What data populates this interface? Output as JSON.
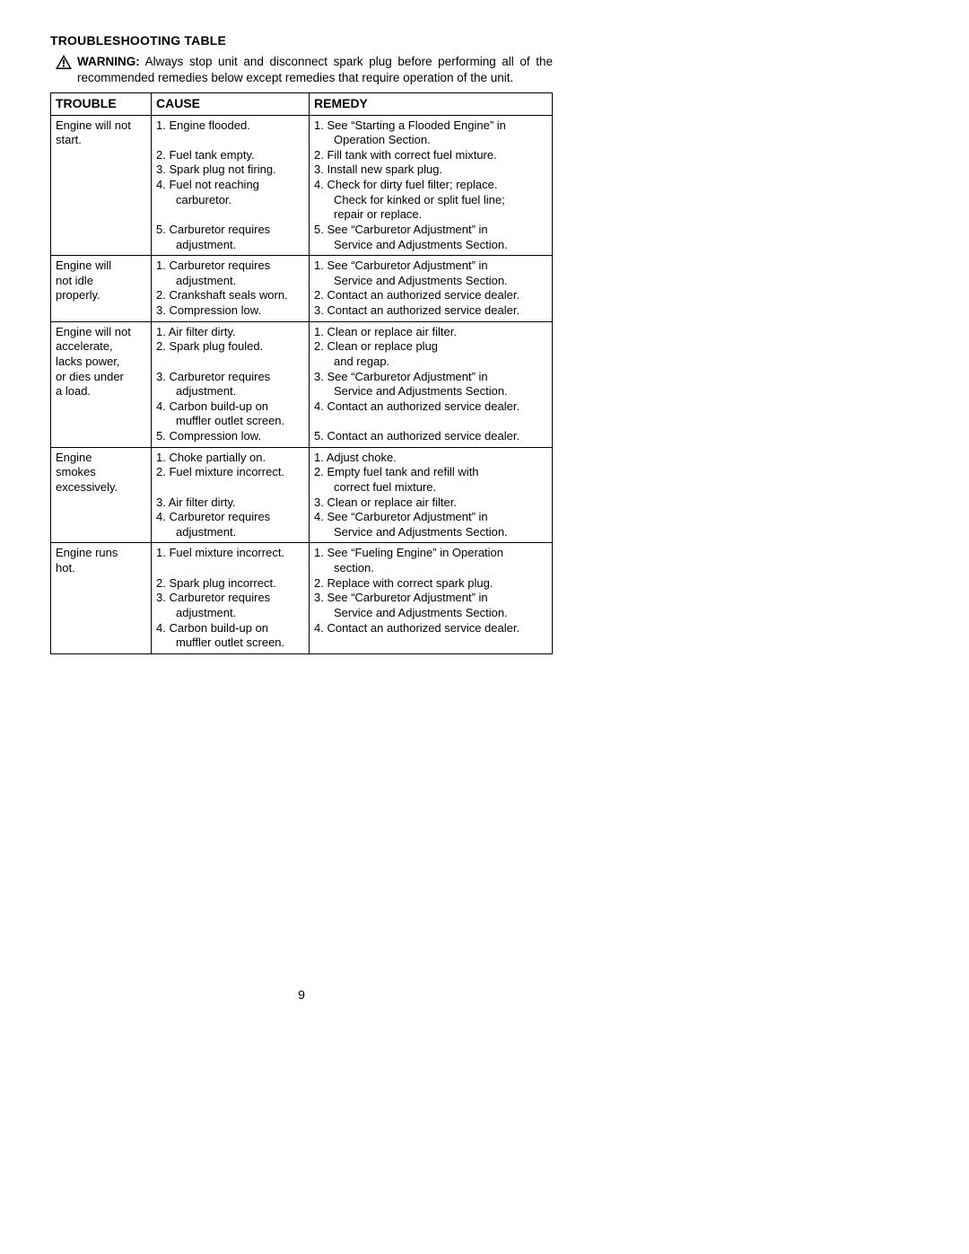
{
  "title": "TROUBLESHOOTING TABLE",
  "warning_label": "WARNING:",
  "warning_text": "Always stop unit and disconnect spark plug before performing all of the recommended remedies below except remedies that require operation of the unit.",
  "headers": {
    "trouble": "TROUBLE",
    "cause": "CAUSE",
    "remedy": "REMEDY"
  },
  "rows": [
    {
      "trouble": [
        "Engine will not",
        "start."
      ],
      "cause": [
        {
          "t": "1. Engine flooded."
        },
        {
          "t": ""
        },
        {
          "t": "2. Fuel tank empty."
        },
        {
          "t": "3. Spark plug not firing."
        },
        {
          "t": "4. Fuel not reaching"
        },
        {
          "t": "carburetor.",
          "cont": true
        },
        {
          "t": ""
        },
        {
          "t": "5. Carburetor requires"
        },
        {
          "t": "adjustment.",
          "cont": true
        }
      ],
      "remedy": [
        {
          "t": "1. See “Starting a Flooded Engine” in"
        },
        {
          "t": "Operation Section.",
          "cont": true
        },
        {
          "t": "2. Fill tank with correct fuel mixture."
        },
        {
          "t": "3. Install new spark plug."
        },
        {
          "t": "4. Check for dirty fuel filter; replace."
        },
        {
          "t": "Check for kinked or split fuel line;",
          "cont": true
        },
        {
          "t": "repair or replace.",
          "cont": true
        },
        {
          "t": "5. See “Carburetor Adjustment” in"
        },
        {
          "t": "Service and Adjustments Section.",
          "cont": true
        }
      ]
    },
    {
      "trouble": [
        "Engine will",
        "not idle",
        "properly."
      ],
      "cause": [
        {
          "t": "1. Carburetor requires"
        },
        {
          "t": "adjustment.",
          "cont": true
        },
        {
          "t": "2. Crankshaft seals worn."
        },
        {
          "t": "3. Compression low."
        }
      ],
      "remedy": [
        {
          "t": "1. See “Carburetor Adjustment” in"
        },
        {
          "t": "Service and Adjustments Section.",
          "cont": true
        },
        {
          "t": "2. Contact an authorized service dealer."
        },
        {
          "t": "3. Contact an authorized service dealer."
        }
      ]
    },
    {
      "trouble": [
        "Engine will not",
        "accelerate,",
        "lacks power,",
        "or dies under",
        "a load."
      ],
      "cause": [
        {
          "t": "1.  Air filter dirty."
        },
        {
          "t": "2. Spark plug fouled."
        },
        {
          "t": ""
        },
        {
          "t": "3. Carburetor requires"
        },
        {
          "t": "adjustment.",
          "cont": true
        },
        {
          "t": "4. Carbon build-up on"
        },
        {
          "t": "muffler outlet screen.",
          "cont": true
        },
        {
          "t": "5. Compression low."
        }
      ],
      "remedy": [
        {
          "t": "1. Clean or replace air filter."
        },
        {
          "t": "2. Clean or replace plug"
        },
        {
          "t": "and regap.",
          "cont": true
        },
        {
          "t": "3. See “Carburetor Adjustment” in"
        },
        {
          "t": "Service and Adjustments Section.",
          "cont": true
        },
        {
          "t": "4. Contact an authorized service dealer."
        },
        {
          "t": ""
        },
        {
          "t": "5. Contact an authorized service dealer."
        }
      ]
    },
    {
      "trouble": [
        "Engine",
        "smokes",
        "excessively."
      ],
      "cause": [
        {
          "t": "1. Choke partially on."
        },
        {
          "t": "2. Fuel mixture incorrect."
        },
        {
          "t": ""
        },
        {
          "t": "3.  Air filter dirty."
        },
        {
          "t": "4. Carburetor requires"
        },
        {
          "t": "adjustment.",
          "cont": true
        }
      ],
      "remedy": [
        {
          "t": "1. Adjust choke."
        },
        {
          "t": "2. Empty fuel tank and refill with"
        },
        {
          "t": "correct fuel mixture.",
          "cont": true
        },
        {
          "t": "3. Clean or replace air filter."
        },
        {
          "t": "4. See “Carburetor Adjustment” in"
        },
        {
          "t": "Service and Adjustments Section.",
          "cont": true
        }
      ]
    },
    {
      "trouble": [
        "Engine runs",
        "hot."
      ],
      "cause": [
        {
          "t": "1. Fuel mixture incorrect."
        },
        {
          "t": ""
        },
        {
          "t": "2. Spark plug incorrect."
        },
        {
          "t": "3. Carburetor requires"
        },
        {
          "t": "adjustment.",
          "cont": true
        },
        {
          "t": "4. Carbon build-up on"
        },
        {
          "t": "muffler outlet screen.",
          "cont": true
        }
      ],
      "remedy": [
        {
          "t": "1. See “Fueling Engine” in Operation"
        },
        {
          "t": "section.",
          "cont": true
        },
        {
          "t": "2. Replace with correct spark plug."
        },
        {
          "t": "3. See “Carburetor Adjustment” in"
        },
        {
          "t": "Service and Adjustments Section.",
          "cont": true
        },
        {
          "t": "4. Contact an authorized service dealer."
        }
      ]
    }
  ],
  "page_number": "9",
  "colors": {
    "text": "#000000",
    "bg": "#ffffff",
    "border": "#000000"
  }
}
